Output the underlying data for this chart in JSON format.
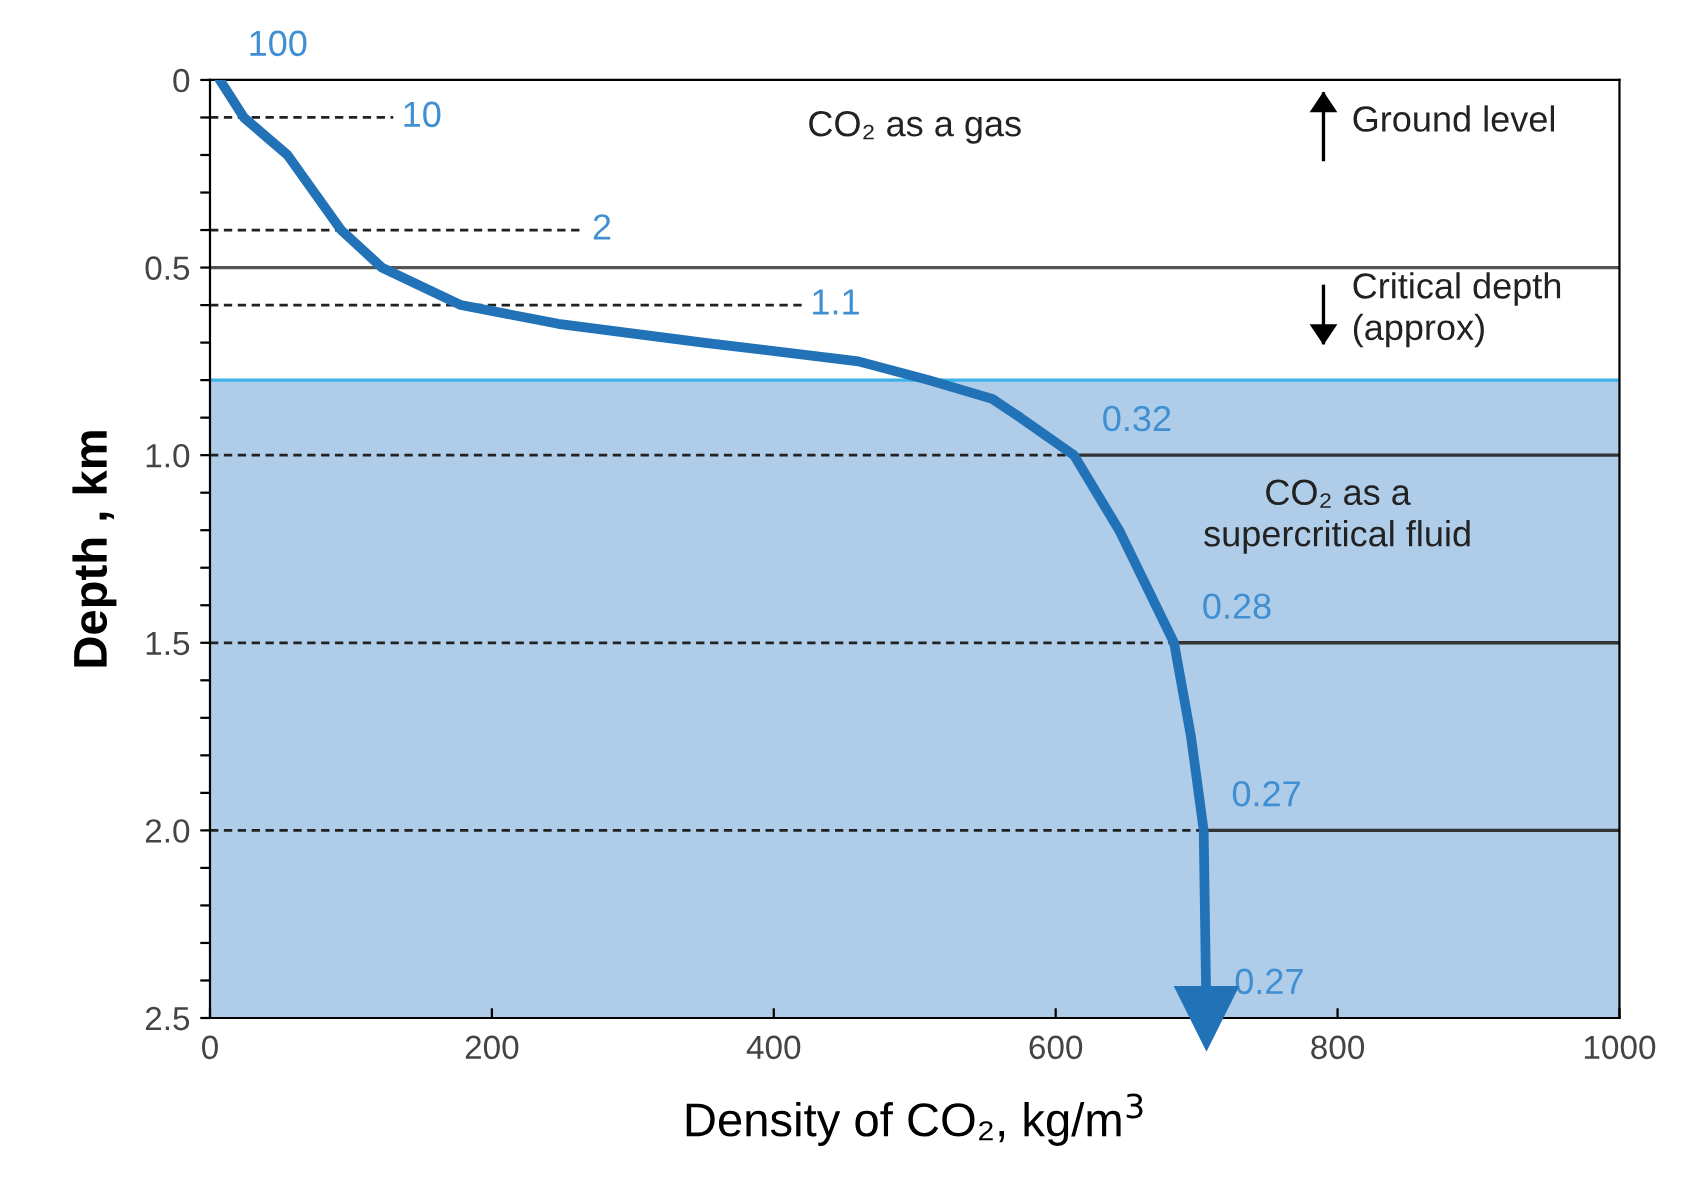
{
  "chart_data": {
    "type": "line",
    "xlabel": "Density of CO₂, kg/m$^{3}$",
    "ylabel": "Depth , km",
    "series": [
      {
        "color": "#2272b8",
        "x": [
          7,
          24,
          55,
          74,
          93,
          122,
          178,
          247,
          350,
          460,
          510,
          555,
          575,
          613,
          645,
          684,
          696,
          705,
          707
        ],
        "values": [
          0,
          0.1,
          0.2,
          0.3,
          0.4,
          0.5,
          0.6,
          0.65,
          0.7,
          0.75,
          0.8,
          0.85,
          0.9,
          1.0,
          1.2,
          1.5,
          1.75,
          2.0,
          2.5
        ]
      }
    ],
    "xlim": [
      0,
      1000
    ],
    "xticks": [
      0,
      200,
      400,
      600,
      800,
      1000
    ],
    "ylim": [
      2.5,
      0
    ],
    "yticks": [
      0,
      {
        "value": 0.1,
        "label": null
      },
      {
        "value": 0.2,
        "label": null
      },
      {
        "value": 0.3,
        "label": null
      },
      {
        "value": 0.4,
        "label": null
      },
      0.5,
      {
        "value": 0.6,
        "label": null
      },
      {
        "value": 0.7,
        "label": null
      },
      {
        "value": 0.8,
        "label": null
      },
      {
        "value": 0.9,
        "label": null
      },
      {
        "value": 1,
        "label": "1.0"
      },
      {
        "value": 1.1,
        "label": null
      },
      {
        "value": 1.2,
        "label": null
      },
      {
        "value": 1.3,
        "label": null
      },
      {
        "value": 1.4,
        "label": null
      },
      1.5,
      {
        "value": 1.6,
        "label": null
      },
      {
        "value": 1.7,
        "label": null
      },
      {
        "value": 1.8,
        "label": null
      },
      {
        "value": 1.9,
        "label": null
      },
      {
        "value": 2,
        "label": "2.0"
      },
      {
        "value": 2.1,
        "label": null
      },
      {
        "value": 2.2,
        "label": null
      },
      {
        "value": 2.3,
        "label": null
      },
      {
        "value": 2.4,
        "label": null
      },
      2.5
    ],
    "bands": [
      {
        "axis": "y",
        "from": 0.8,
        "to": 2.5,
        "label": null,
        "color": "#afcde9"
      }
    ],
    "ref_lines": [
      {
        "axis": "y",
        "value": 0.5,
        "label": null,
        "color": "#555555"
      },
      {
        "axis": "y",
        "value": 1.0,
        "label": null,
        "color": "#333333"
      },
      {
        "axis": "y",
        "value": 1.5,
        "label": null,
        "color": "#333333"
      },
      {
        "axis": "y",
        "value": 2.0,
        "label": null,
        "color": "#333333"
      },
      {
        "axis": "y",
        "value": 0.8,
        "label": null,
        "color": "#3cb4ea"
      },
      {
        "axis": "y",
        "value": 0.1,
        "label": null,
        "color": "#222222",
        "line_style": "dashed"
      },
      {
        "axis": "y",
        "value": 0.4,
        "label": null,
        "color": "#222222",
        "line_style": "dashed"
      },
      {
        "axis": "y",
        "value": 0.6,
        "label": null,
        "color": "#222222",
        "line_style": "dashed"
      }
    ],
    "annotations": [
      {
        "text": "100",
        "x": 7,
        "y": 0
      },
      {
        "text": "0.32",
        "x": 613,
        "y": 1.0
      },
      {
        "text": "0.28",
        "x": 684,
        "y": 1.5
      },
      {
        "text": "0.27",
        "x": 705,
        "y": 2.0
      },
      {
        "text": "0.27",
        "x": 707,
        "y": 2.5
      },
      "10",
      "2",
      "1.1",
      "CO₂ as a gas",
      "Ground level",
      "Critical depth\n(approx)",
      "CO₂ as a\nsupercritical fluid"
    ],
    "grid": false,
    "marker": "none",
    "line_style": "solid"
  }
}
